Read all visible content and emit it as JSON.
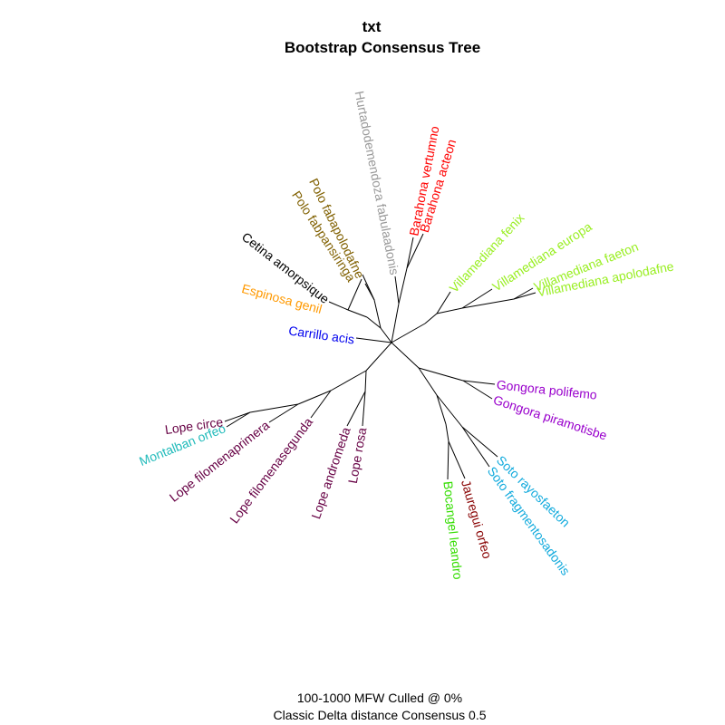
{
  "title": "txt",
  "subtitle": "Bootstrap Consensus Tree",
  "caption_line1": "100-1000 MFW  Culled @ 0%",
  "caption_line2": "Classic Delta distance Consensus 0.5",
  "colors": {
    "red": "#ff0000",
    "gray": "#999999",
    "olive": "#806000",
    "black": "#000000",
    "orange": "#ff9900",
    "blue": "#0000ee",
    "lime": "#99ee22",
    "purple": "#9900cc",
    "cyan": "#11aadd",
    "maroon": "#880000",
    "green": "#33dd00",
    "plum": "#660044",
    "teal": "#22bbbb"
  },
  "leaves": [
    {
      "id": "barahona-vertumno",
      "text": "Barahona vertumno",
      "color": "red"
    },
    {
      "id": "barahona-acteon",
      "text": "Barahona acteon",
      "color": "red"
    },
    {
      "id": "hurtado-fabula",
      "text": "Hurtadodemendoza fabulaadonis",
      "color": "gray"
    },
    {
      "id": "polo-fabapolodafne",
      "text": "Polo fabapolodafne",
      "color": "olive"
    },
    {
      "id": "polo-fabpansiringa",
      "text": "Polo fabpansiringa",
      "color": "olive"
    },
    {
      "id": "cetina-amorpsique",
      "text": "Cetina amorpsique",
      "color": "black"
    },
    {
      "id": "espinosa-genil",
      "text": "Espinosa genil",
      "color": "orange"
    },
    {
      "id": "carrillo-acis",
      "text": "Carrillo acis",
      "color": "blue"
    },
    {
      "id": "villamediana-fenix",
      "text": "Villamediana fenix",
      "color": "lime"
    },
    {
      "id": "villamediana-europa",
      "text": "Villamediana europa",
      "color": "lime"
    },
    {
      "id": "villamediana-faeton",
      "text": "Villamediana faeton",
      "color": "lime"
    },
    {
      "id": "villamediana-apolodafne",
      "text": "Villamediana apolodafne",
      "color": "lime"
    },
    {
      "id": "gongora-polifemo",
      "text": "Gongora polifemo",
      "color": "purple"
    },
    {
      "id": "gongora-piramotisbe",
      "text": "Gongora piramotisbe",
      "color": "purple"
    },
    {
      "id": "soto-rayosfaeton",
      "text": "Soto rayosfaeton",
      "color": "cyan"
    },
    {
      "id": "soto-fragmentosadonis",
      "text": "Soto fragmentosadonis",
      "color": "cyan"
    },
    {
      "id": "jauregui-orfeo",
      "text": "Jauregui orfeo",
      "color": "maroon"
    },
    {
      "id": "bocangel-leandro",
      "text": "Bocangel leandro",
      "color": "green"
    },
    {
      "id": "lope-rosa",
      "text": "Lope rosa",
      "color": "plum"
    },
    {
      "id": "lope-andromeda",
      "text": "Lope andromeda",
      "color": "plum"
    },
    {
      "id": "lope-filomenasegunda",
      "text": "Lope filomenasegunda",
      "color": "plum"
    },
    {
      "id": "lope-filomenaprimera",
      "text": "Lope filomenaprimera",
      "color": "plum"
    },
    {
      "id": "montalban-orfeo",
      "text": "Montalban orfeo",
      "color": "teal"
    },
    {
      "id": "lope-circe",
      "text": "Lope circe",
      "color": "plum"
    }
  ]
}
